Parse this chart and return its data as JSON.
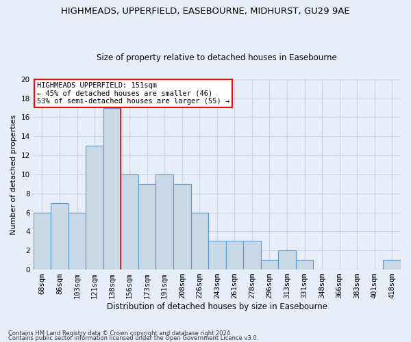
{
  "title_line1": "HIGHMEADS, UPPERFIELD, EASEBOURNE, MIDHURST, GU29 9AE",
  "title_line2": "Size of property relative to detached houses in Easebourne",
  "xlabel": "Distribution of detached houses by size in Easebourne",
  "ylabel": "Number of detached properties",
  "categories": [
    "68sqm",
    "86sqm",
    "103sqm",
    "121sqm",
    "138sqm",
    "156sqm",
    "173sqm",
    "191sqm",
    "208sqm",
    "226sqm",
    "243sqm",
    "261sqm",
    "278sqm",
    "296sqm",
    "313sqm",
    "331sqm",
    "348sqm",
    "366sqm",
    "383sqm",
    "401sqm",
    "418sqm"
  ],
  "values": [
    6,
    7,
    6,
    13,
    17,
    10,
    9,
    10,
    9,
    6,
    3,
    3,
    3,
    1,
    2,
    1,
    0,
    0,
    0,
    0,
    1
  ],
  "bar_color": "#c9d9e8",
  "bar_edge_color": "#5b9bd5",
  "red_line_x": 4.5,
  "annotation_text": "HIGHMEADS UPPERFIELD: 151sqm\n← 45% of detached houses are smaller (46)\n53% of semi-detached houses are larger (55) →",
  "annotation_box_color": "white",
  "annotation_box_edge": "red",
  "ylim": [
    0,
    20
  ],
  "yticks": [
    0,
    2,
    4,
    6,
    8,
    10,
    12,
    14,
    16,
    18,
    20
  ],
  "grid_color": "#c8d4e8",
  "footer_line1": "Contains HM Land Registry data © Crown copyright and database right 2024.",
  "footer_line2": "Contains public sector information licensed under the Open Government Licence v3.0.",
  "background_color": "#e8eef8",
  "plot_background_color": "#e8eef8",
  "title1_fontsize": 9.5,
  "title2_fontsize": 8.5,
  "ylabel_fontsize": 8,
  "xlabel_fontsize": 8.5,
  "tick_fontsize": 7.5,
  "annot_fontsize": 7.5
}
